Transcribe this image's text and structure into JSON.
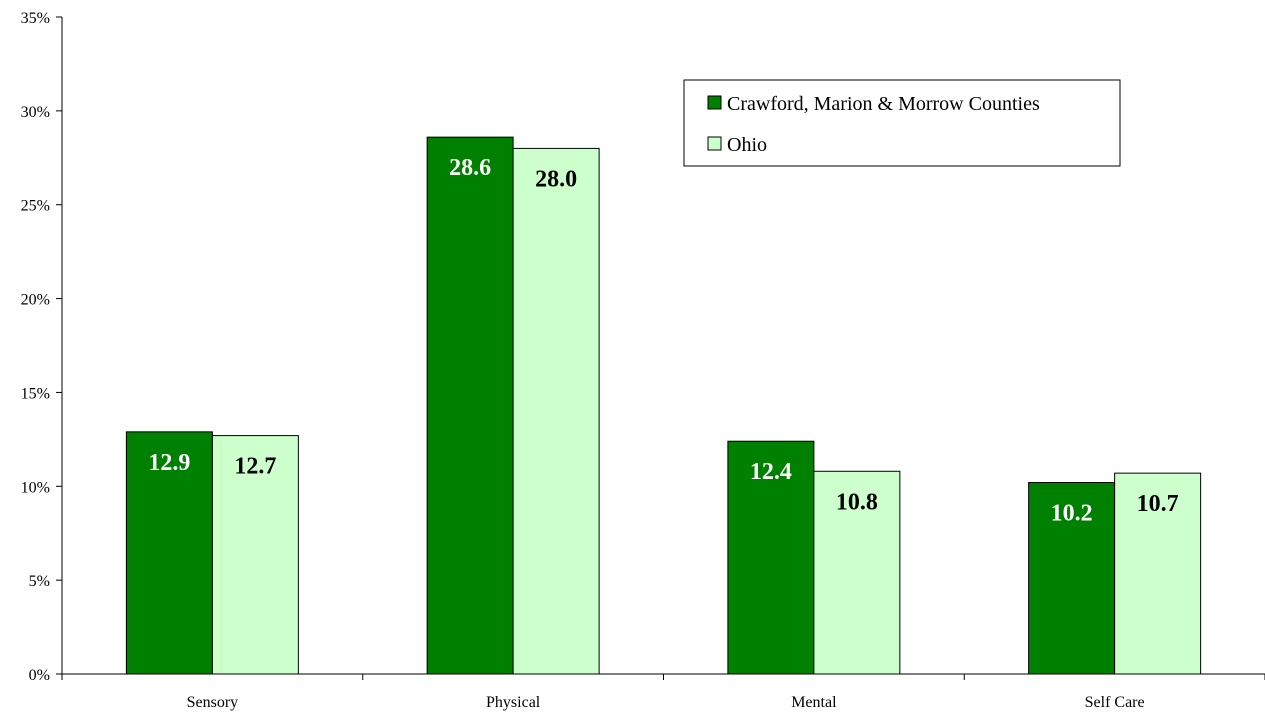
{
  "chart_data": {
    "type": "bar",
    "categories": [
      "Sensory",
      "Physical",
      "Mental",
      "Self Care"
    ],
    "series": [
      {
        "name": "Crawford, Marion & Morrow Counties",
        "values": [
          12.9,
          28.6,
          12.4,
          10.2
        ],
        "color": "#008000",
        "label_color": "#ffffff"
      },
      {
        "name": "Ohio",
        "values": [
          12.7,
          28.0,
          10.8,
          10.7
        ],
        "color": "#ccffcc",
        "label_color": "#000000"
      }
    ],
    "data_labels": [
      [
        "12.9",
        "28.6",
        "12.4",
        "10.2"
      ],
      [
        "12.7",
        "28.0",
        "10.8",
        "10.7"
      ]
    ],
    "ylim": [
      0,
      35
    ],
    "yticks": [
      0,
      5,
      10,
      15,
      20,
      25,
      30,
      35
    ],
    "ytick_labels": [
      "0%",
      "5%",
      "10%",
      "15%",
      "20%",
      "25%",
      "30%",
      "35%"
    ],
    "grid": false,
    "legend_position": "top-right"
  }
}
